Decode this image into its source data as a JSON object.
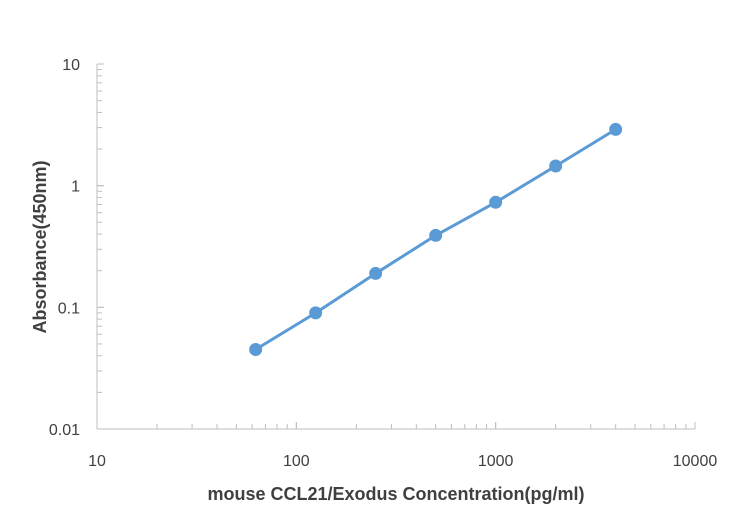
{
  "chart_data": {
    "type": "line",
    "title": "",
    "xlabel": "mouse CCL21/Exodus Concentration(pg/ml)",
    "ylabel": "Absorbance(450nm)",
    "x_scale": "log",
    "y_scale": "log",
    "xlim": [
      10,
      10000
    ],
    "ylim": [
      0.01,
      10
    ],
    "x_ticks": [
      "10",
      "100",
      "1000",
      "10000"
    ],
    "y_ticks": [
      "0.01",
      "0.1",
      "1",
      "10"
    ],
    "grid": false,
    "legend": "none",
    "series": [
      {
        "color": "#5b9bd5",
        "x": [
          62.5,
          125,
          250,
          500,
          1000,
          2000,
          4000
        ],
        "y": [
          0.045,
          0.09,
          0.19,
          0.39,
          0.73,
          1.45,
          2.9
        ]
      }
    ]
  }
}
